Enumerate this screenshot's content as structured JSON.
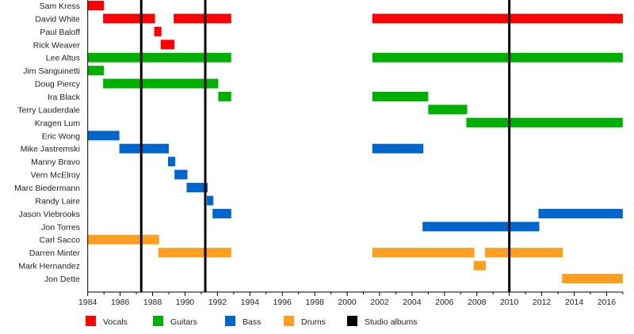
{
  "chart_data": {
    "type": "timeline",
    "title": "",
    "xlabel": "",
    "ylabel": "",
    "xlim": [
      1984,
      2017
    ],
    "x_ticks": [
      1984,
      1986,
      1988,
      1990,
      1992,
      1994,
      1996,
      1998,
      2000,
      2002,
      2004,
      2006,
      2008,
      2010,
      2012,
      2014,
      2016
    ],
    "grid": false,
    "legend_placement": "bottom",
    "legend": [
      {
        "key": "vocals",
        "label": "Vocals",
        "color": "#ff0000"
      },
      {
        "key": "guitars",
        "label": "Guitars",
        "color": "#00b000"
      },
      {
        "key": "bass",
        "label": "Bass",
        "color": "#0066cc"
      },
      {
        "key": "drums",
        "label": "Drums",
        "color": "#ff9f22"
      },
      {
        "key": "albums",
        "label": "Studio albums",
        "color": "#000000"
      }
    ],
    "studio_albums": [
      1987.3,
      1991.25,
      2010.0
    ],
    "members": [
      {
        "name": "Sam Kress",
        "role": "vocals",
        "periods": [
          [
            1984.0,
            1985.0
          ]
        ]
      },
      {
        "name": "David White",
        "role": "vocals",
        "periods": [
          [
            1984.95,
            1988.15
          ],
          [
            1989.3,
            1992.85
          ],
          [
            2001.55,
            2017.0
          ]
        ]
      },
      {
        "name": "Paul Baloff",
        "role": "vocals",
        "periods": [
          [
            1988.1,
            1988.55
          ]
        ]
      },
      {
        "name": "Rick Weaver",
        "role": "vocals",
        "periods": [
          [
            1988.5,
            1989.35
          ]
        ]
      },
      {
        "name": "Lee Altus",
        "role": "guitars",
        "periods": [
          [
            1984.0,
            1992.85
          ],
          [
            2001.55,
            2017.0
          ]
        ]
      },
      {
        "name": "Jim Sanguinetti",
        "role": "guitars",
        "periods": [
          [
            1984.0,
            1985.0
          ]
        ]
      },
      {
        "name": "Doug Piercy",
        "role": "guitars",
        "periods": [
          [
            1984.95,
            1992.05
          ]
        ]
      },
      {
        "name": "Ira Black",
        "role": "guitars",
        "periods": [
          [
            1992.05,
            1992.85
          ],
          [
            2001.55,
            2005.0
          ]
        ]
      },
      {
        "name": "Terry Lauderdale",
        "role": "guitars",
        "periods": [
          [
            2005.0,
            2007.4
          ]
        ]
      },
      {
        "name": "Kragen Lum",
        "role": "guitars",
        "periods": [
          [
            2007.35,
            2017.0
          ]
        ]
      },
      {
        "name": "Eric Wong",
        "role": "bass",
        "periods": [
          [
            1984.0,
            1985.95
          ]
        ]
      },
      {
        "name": "Mike Jastremski",
        "role": "bass",
        "periods": [
          [
            1985.95,
            1989.0
          ],
          [
            2001.55,
            2004.7
          ]
        ]
      },
      {
        "name": "Manny Bravo",
        "role": "bass",
        "periods": [
          [
            1988.95,
            1989.4
          ]
        ]
      },
      {
        "name": "Vern McElroy",
        "role": "bass",
        "periods": [
          [
            1989.35,
            1990.15
          ]
        ]
      },
      {
        "name": "Marc Biedermann",
        "role": "bass",
        "periods": [
          [
            1990.1,
            1991.4
          ]
        ]
      },
      {
        "name": "Randy Laire",
        "role": "bass",
        "periods": [
          [
            1991.35,
            1991.75
          ]
        ]
      },
      {
        "name": "Jason Viebrooks",
        "role": "bass",
        "periods": [
          [
            1991.7,
            1992.85
          ],
          [
            2011.8,
            2017.0
          ]
        ]
      },
      {
        "name": "Jon Torres",
        "role": "bass",
        "periods": [
          [
            2004.65,
            2011.85
          ]
        ]
      },
      {
        "name": "Carl Sacco",
        "role": "drums",
        "periods": [
          [
            1984.0,
            1988.4
          ]
        ]
      },
      {
        "name": "Darren Minter",
        "role": "drums",
        "periods": [
          [
            1988.35,
            1992.85
          ],
          [
            2001.55,
            2007.85
          ],
          [
            2008.5,
            2013.3
          ]
        ]
      },
      {
        "name": "Mark Hernandez",
        "role": "drums",
        "periods": [
          [
            2007.8,
            2008.55
          ]
        ]
      },
      {
        "name": "Jon Dette",
        "role": "drums",
        "periods": [
          [
            2013.25,
            2017.0
          ]
        ]
      }
    ]
  }
}
